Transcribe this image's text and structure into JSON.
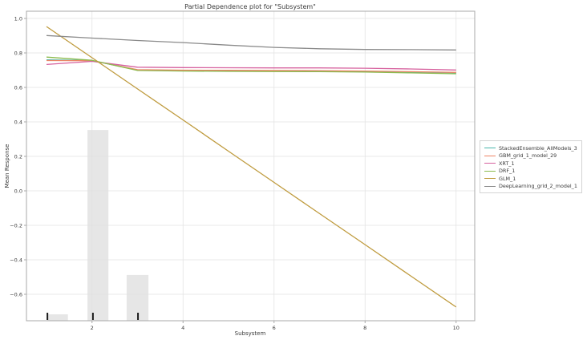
{
  "figure": {
    "title": "Partial Dependence plot for \"Subsystem\"",
    "xlabel": "Subsystem",
    "ylabel": "Mean Response"
  },
  "chart_data": {
    "type": "line",
    "title": "Partial Dependence plot for \"Subsystem\"",
    "xlabel": "Subsystem",
    "ylabel": "Mean Response",
    "xlim": [
      0.56,
      10.42
    ],
    "ylim": [
      -0.753,
      1.042
    ],
    "grid": true,
    "legend_position": "right-outside",
    "xticks": {
      "values": [
        2,
        4,
        6,
        8,
        10
      ],
      "labels": [
        "2",
        "4",
        "6",
        "8",
        "10"
      ]
    },
    "yticks": {
      "values": [
        1.0,
        0.8,
        0.6,
        0.4,
        0.2,
        0.0,
        -0.2,
        -0.4,
        -0.6
      ],
      "labels": [
        "1.0",
        "0.8",
        "0.6",
        "0.4",
        "0.2",
        "0.0",
        "−0.2",
        "−0.4",
        "−0.6"
      ]
    },
    "x": [
      1,
      2,
      3,
      4,
      5,
      6,
      7,
      8,
      9,
      10
    ],
    "series": [
      {
        "name": "StackedEnsemble_AllModels_3",
        "color": "#49b6ab",
        "values": [
          0.76,
          0.756,
          0.701,
          0.698,
          0.697,
          0.696,
          0.695,
          0.693,
          0.689,
          0.684
        ]
      },
      {
        "name": "GBM_grid_1_model_29",
        "color": "#ee8465",
        "values": [
          0.756,
          0.755,
          0.703,
          0.7,
          0.699,
          0.698,
          0.697,
          0.695,
          0.691,
          0.687
        ]
      },
      {
        "name": "XRT_1",
        "color": "#d6619e",
        "values": [
          0.733,
          0.751,
          0.717,
          0.715,
          0.714,
          0.713,
          0.713,
          0.711,
          0.707,
          0.701
        ]
      },
      {
        "name": "DRF_1",
        "color": "#8cbb4e",
        "values": [
          0.776,
          0.757,
          0.698,
          0.695,
          0.693,
          0.692,
          0.691,
          0.689,
          0.684,
          0.679
        ]
      },
      {
        "name": "GLM_1",
        "color": "#bf9b3e",
        "values": [
          0.953,
          0.772,
          0.591,
          0.411,
          0.23,
          0.049,
          -0.132,
          -0.312,
          -0.493,
          -0.674
        ]
      },
      {
        "name": "DeepLearning_grid_2_model_1",
        "color": "#8a8a8a",
        "values": [
          0.901,
          0.886,
          0.872,
          0.86,
          0.845,
          0.832,
          0.824,
          0.82,
          0.819,
          0.817
        ]
      }
    ],
    "histogram": {
      "comment": "light-gray frequency bars of the Subsystem feature",
      "baseline": -0.753,
      "color": "#dedede",
      "opacity": 0.75,
      "bars": [
        {
          "x_left": 1.02,
          "x_right": 1.47,
          "top": -0.716
        },
        {
          "x_left": 1.9,
          "x_right": 2.36,
          "top": 0.353
        },
        {
          "x_left": 2.76,
          "x_right": 3.24,
          "top": -0.488
        }
      ]
    },
    "rug": {
      "x": [
        1.02,
        2.02,
        3.01
      ],
      "color": "#1a1a1a"
    },
    "style": {
      "spine_color": "#a8a8a8",
      "grid_color": "#e3e3e3",
      "tick_label_color": "#3a3a3a"
    }
  }
}
